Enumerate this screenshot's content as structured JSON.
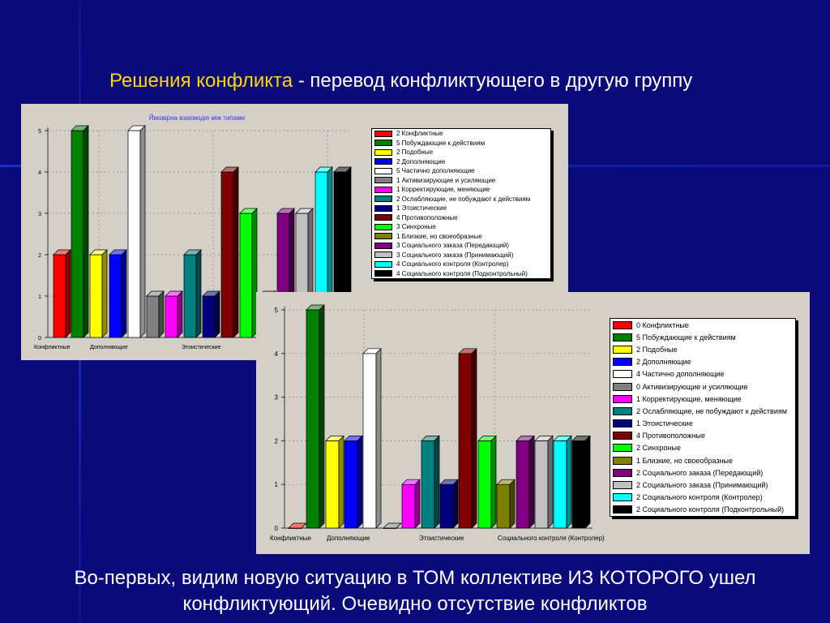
{
  "slide": {
    "title_highlight": "Решения конфликта",
    "title_rest": " - перевод конфликтующего в другую группу",
    "footer_line1": "Во-первых, видим новую ситуацию в ТОМ коллективе ИЗ КОТОРОГО ушел",
    "footer_line2": "конфликтующий. Очевидно отсутствие конфликтов",
    "colors": {
      "background": "#0a0a7a",
      "title_highlight": "#ffd700",
      "text": "#ffffff",
      "chart_bg": "#d4d0c8"
    }
  },
  "chart_data": [
    {
      "type": "bar",
      "title": "Ймовірна взаємодія між типами",
      "ylim": [
        0,
        5
      ],
      "yticks": [
        "0",
        "1",
        "2",
        "3",
        "4",
        "5"
      ],
      "xlabels": [
        "Конфликтные",
        "Дополняющие",
        "Этоистические"
      ],
      "grid": true,
      "legend_position": "right",
      "series": [
        {
          "name": "Конфликтные",
          "legend": "2 Конфликтные",
          "value": 2,
          "color": "#ff0000"
        },
        {
          "name": "Побуждающие к действиям",
          "legend": "5 Побуждающие к действиям",
          "value": 5,
          "color": "#008000"
        },
        {
          "name": "Подобные",
          "legend": "2 Подобные",
          "value": 2,
          "color": "#ffff00"
        },
        {
          "name": "Дополняющие",
          "legend": "2 Дополняющие",
          "value": 2,
          "color": "#0000ff"
        },
        {
          "name": "Частично дополняющие",
          "legend": "5 Частично дополняющие",
          "value": 5,
          "color": "#ffffff"
        },
        {
          "name": "Активизирующие и усиляющие",
          "legend": "1 Активизирующие и усиляющие",
          "value": 1,
          "color": "#808080"
        },
        {
          "name": "Корректирующие, меняющие",
          "legend": "1 Корректирующие, меняющие",
          "value": 1,
          "color": "#ff00ff"
        },
        {
          "name": "Ослабляющие, не побуждают к действиям",
          "legend": "2 Ослабляющие, не побуждают к действиям",
          "value": 2,
          "color": "#008080"
        },
        {
          "name": "Этоистические",
          "legend": "1 Этоистические",
          "value": 1,
          "color": "#000080"
        },
        {
          "name": "Противоположные",
          "legend": "4 Противоположные",
          "value": 4,
          "color": "#800000"
        },
        {
          "name": "Синхроные",
          "legend": "3 Синхроные",
          "value": 3,
          "color": "#00ff00"
        },
        {
          "name": "Близкие, но своеобразные",
          "legend": "1 Близкие, но своеобразные",
          "value": 1,
          "color": "#808000"
        },
        {
          "name": "Социального заказа (Передающий)",
          "legend": "3 Социального заказа (Передающий)",
          "value": 3,
          "color": "#800080"
        },
        {
          "name": "Социального заказа (Принимающий)",
          "legend": "3 Социального заказа (Принимающий)",
          "value": 3,
          "color": "#c0c0c0"
        },
        {
          "name": "Социального контроля (Контролер)",
          "legend": "4 Социального контроля (Контролер)",
          "value": 4,
          "color": "#00ffff"
        },
        {
          "name": "Социального контроля (Подконтрольный)",
          "legend": "4 Социального контроля (Подконтрольный)",
          "value": 4,
          "color": "#000000"
        }
      ]
    },
    {
      "type": "bar",
      "title": "",
      "ylim": [
        0,
        5
      ],
      "yticks": [
        "0",
        "1",
        "2",
        "3",
        "4",
        "5"
      ],
      "xlabels": [
        "Конфликтные",
        "Дополняющие",
        "Этоистические",
        "Социального контроля (Контролер)"
      ],
      "grid": true,
      "legend_position": "right",
      "series": [
        {
          "name": "Конфликтные",
          "legend": "0 Конфликтные",
          "value": 0,
          "color": "#ff0000"
        },
        {
          "name": "Побуждающие к действиям",
          "legend": "5 Побуждающие к действиям",
          "value": 5,
          "color": "#008000"
        },
        {
          "name": "Подобные",
          "legend": "2 Подобные",
          "value": 2,
          "color": "#ffff00"
        },
        {
          "name": "Дополняющие",
          "legend": "2 Дополняющие",
          "value": 2,
          "color": "#0000ff"
        },
        {
          "name": "Частично дополняющие",
          "legend": "4 Частично дополняющие",
          "value": 4,
          "color": "#ffffff"
        },
        {
          "name": "Активизирующие и усиляющие",
          "legend": "0 Активизирующие и усиляющие",
          "value": 0,
          "color": "#808080"
        },
        {
          "name": "Корректирующие, меняющие",
          "legend": "1 Корректирующие, меняющие",
          "value": 1,
          "color": "#ff00ff"
        },
        {
          "name": "Ослабляющие, не побуждают к действиям",
          "legend": "2 Ослабляющие, не побуждают к действиям",
          "value": 2,
          "color": "#008080"
        },
        {
          "name": "Этоистические",
          "legend": "1 Этоистические",
          "value": 1,
          "color": "#000080"
        },
        {
          "name": "Противоположные",
          "legend": "4 Противоположные",
          "value": 4,
          "color": "#800000"
        },
        {
          "name": "Синхроные",
          "legend": "2 Синхроные",
          "value": 2,
          "color": "#00ff00"
        },
        {
          "name": "Близкие, но своеобразные",
          "legend": "1 Близкие, но своеобразные",
          "value": 1,
          "color": "#808000"
        },
        {
          "name": "Социального заказа (Передающий)",
          "legend": "2 Социального заказа (Передающий)",
          "value": 2,
          "color": "#800080"
        },
        {
          "name": "Социального заказа (Принимающий)",
          "legend": "2 Социального заказа (Принимающий)",
          "value": 2,
          "color": "#c0c0c0"
        },
        {
          "name": "Социального контроля (Контролер)",
          "legend": "2 Социального контроля (Контролер)",
          "value": 2,
          "color": "#00ffff"
        },
        {
          "name": "Социального контроля (Подконтрольный)",
          "legend": "2 Социального контроля (Подконтрольный)",
          "value": 2,
          "color": "#000000"
        }
      ]
    }
  ]
}
